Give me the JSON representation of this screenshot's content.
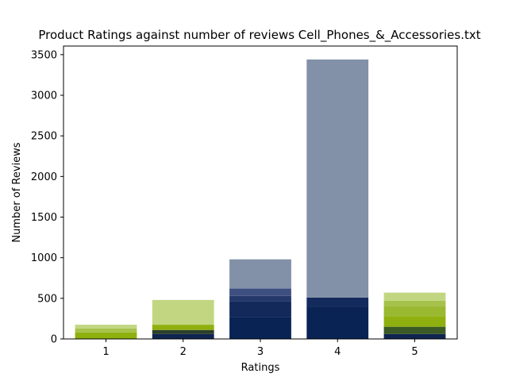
{
  "chart_data": {
    "type": "bar",
    "title": "Product Ratings against number of reviews Cell_Phones_&_Accessories.txt",
    "xlabel": "Ratings",
    "ylabel": "Number of Reviews",
    "categories": [
      "1",
      "2",
      "3",
      "4",
      "5"
    ],
    "ylim": [
      0,
      3600
    ],
    "yticks": [
      0,
      500,
      1000,
      1500,
      2000,
      2500,
      3000,
      3500
    ],
    "grid": false,
    "stacked": true,
    "bars": [
      {
        "category": "1",
        "segments": [
          {
            "bottom": 0,
            "top": 80,
            "color": "#8fb00e"
          },
          {
            "bottom": 80,
            "top": 130,
            "color": "#a7c24a"
          },
          {
            "bottom": 130,
            "top": 175,
            "color": "#c2d682"
          }
        ]
      },
      {
        "category": "2",
        "segments": [
          {
            "bottom": 0,
            "top": 60,
            "color": "#0e2452"
          },
          {
            "bottom": 60,
            "top": 110,
            "color": "#2c3f2a"
          },
          {
            "bottom": 110,
            "top": 175,
            "color": "#8fb00e"
          },
          {
            "bottom": 175,
            "top": 480,
            "color": "#c2d682"
          }
        ]
      },
      {
        "category": "3",
        "segments": [
          {
            "bottom": 0,
            "top": 270,
            "color": "#082354"
          },
          {
            "bottom": 270,
            "top": 460,
            "color": "#12295a"
          },
          {
            "bottom": 460,
            "top": 530,
            "color": "#24396a"
          },
          {
            "bottom": 530,
            "top": 620,
            "color": "#3e5080"
          },
          {
            "bottom": 620,
            "top": 980,
            "color": "#8290a8"
          }
        ]
      },
      {
        "category": "4",
        "segments": [
          {
            "bottom": 0,
            "top": 400,
            "color": "#082354"
          },
          {
            "bottom": 400,
            "top": 510,
            "color": "#132b5c"
          },
          {
            "bottom": 510,
            "top": 3440,
            "color": "#8290a8"
          }
        ]
      },
      {
        "category": "5",
        "segments": [
          {
            "bottom": 0,
            "top": 60,
            "color": "#0e2452"
          },
          {
            "bottom": 60,
            "top": 150,
            "color": "#3c5a26"
          },
          {
            "bottom": 150,
            "top": 280,
            "color": "#8fb00e"
          },
          {
            "bottom": 280,
            "top": 400,
            "color": "#9ab830"
          },
          {
            "bottom": 400,
            "top": 470,
            "color": "#a7c24a"
          },
          {
            "bottom": 470,
            "top": 570,
            "color": "#c2d682"
          }
        ]
      }
    ]
  }
}
